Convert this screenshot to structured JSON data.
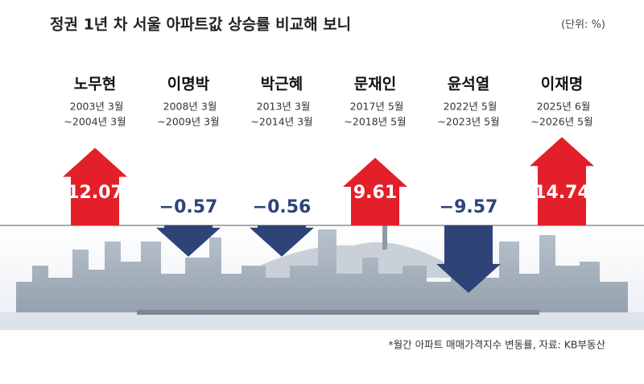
{
  "chart_data": {
    "type": "arrow-bar",
    "title": "정권 1년 차 서울 아파트값 상승률 비교해 보니",
    "unit": "(단위: %)",
    "source": "*월간 아파트 매매가격지수 변동률, 자료: KB부동산",
    "categories": [
      "노무현",
      "이명박",
      "박근혜",
      "문재인",
      "윤석열",
      "이재명"
    ],
    "periods": [
      [
        "2003년 3월",
        "~2004년 3월"
      ],
      [
        "2008년 3월",
        "~2009년 3월"
      ],
      [
        "2013년 3월",
        "~2014년 3월"
      ],
      [
        "2017년 5월",
        "~2018년 5월"
      ],
      [
        "2022년 5월",
        "~2023년 5월"
      ],
      [
        "2025년 6월",
        "~2026년 5월"
      ]
    ],
    "values": [
      12.07,
      -0.57,
      -0.56,
      9.61,
      -9.57,
      14.74
    ],
    "value_labels": [
      "12.07",
      "−0.57",
      "−0.56",
      "9.61",
      "−9.57",
      "14.74"
    ],
    "colors": {
      "up": "#e3202a",
      "down": "#2e4478"
    }
  }
}
